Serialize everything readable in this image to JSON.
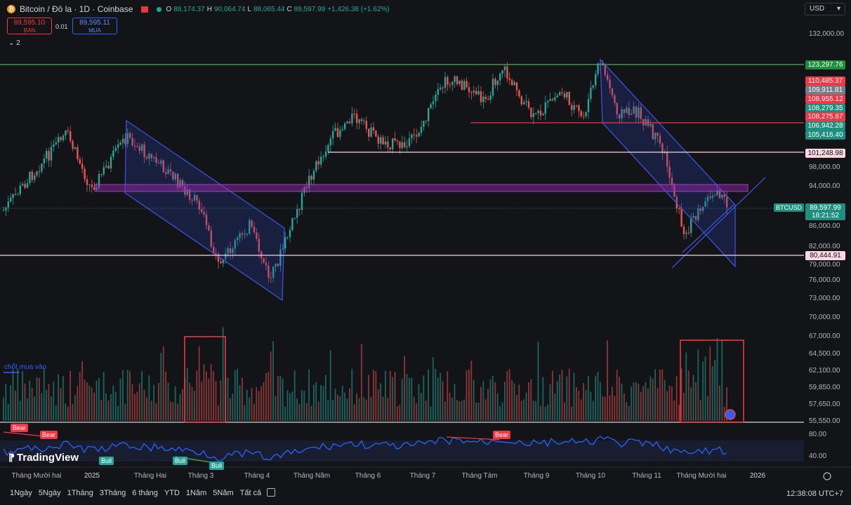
{
  "header": {
    "title": "Bitcoin / Đô la · 1D · Coinbase",
    "ohlc": {
      "o_label": "O",
      "o": "88,174.37",
      "h_label": "H",
      "h": "90,064.74",
      "l_label": "L",
      "l": "88,065.44",
      "c_label": "C",
      "c": "89,597.99",
      "change": "+1,426.38 (+1.62%)"
    },
    "sell_price": "89,595.10",
    "sell_label": "BÁN",
    "spread": "0.01",
    "buy_price": "89,595.11",
    "buy_label": "MUA",
    "indicator_count": "2",
    "currency": "USD"
  },
  "y_axis_labels": [
    "132,000.00",
    "98,000.00",
    "94,000.00",
    "86,000.00",
    "82,000.00",
    "79,000.00",
    "76,000.00",
    "73,000.00",
    "70,000.00",
    "67,000.00",
    "64,500.00",
    "62,100.00",
    "59,850.00",
    "57,650.00",
    "55,550.00"
  ],
  "rsi_axis_labels": [
    "80.00",
    "40.00"
  ],
  "price_tags": [
    {
      "text": "123,297.76",
      "bg": "#1b8f3a",
      "fg": "#ffffff"
    },
    {
      "text": "110,485.37",
      "bg": "#f23645",
      "fg": "#ffffff"
    },
    {
      "text": "109,911.81",
      "bg": "#787b86",
      "fg": "#ffffff"
    },
    {
      "text": "108,955.12",
      "bg": "#f23645",
      "fg": "#ffffff"
    },
    {
      "text": "108,279.35",
      "bg": "#1e8f7e",
      "fg": "#ffffff"
    },
    {
      "text": "108,275.67",
      "bg": "#f23645",
      "fg": "#ffffff"
    },
    {
      "text": "106,942.28",
      "bg": "#1e8f7e",
      "fg": "#ffffff"
    },
    {
      "text": "105,416.40",
      "bg": "#1e8f7e",
      "fg": "#ffffff"
    },
    {
      "text": "101,248.98",
      "bg": "#f8d7e0",
      "fg": "#131418"
    },
    {
      "text": "89,597.99",
      "bg": "#1e8f7e",
      "fg": "#ffffff"
    },
    {
      "text": "18:21:52",
      "bg": "#1e8f7e",
      "fg": "#ffffff"
    },
    {
      "text": "80,444.91",
      "bg": "#f8d7e0",
      "fg": "#131418"
    }
  ],
  "symbol_label": "BTCUSD",
  "volume_note": "chốt mua vào",
  "time_axis": [
    "Tháng Mười hai",
    "2025",
    "Tháng Hai",
    "Tháng 3",
    "Tháng 4",
    "Tháng Năm",
    "Tháng 6",
    "Tháng 7",
    "Tháng Tám",
    "Tháng 9",
    "Tháng 10",
    "Tháng 11",
    "Tháng Mười hai",
    "2026"
  ],
  "rsi_badges": {
    "bear": "Bear",
    "bull": "Bull"
  },
  "logo_text": "TradingView",
  "timeframes": [
    "1Ngày",
    "5Ngày",
    "1Tháng",
    "3Tháng",
    "6 tháng",
    "YTD",
    "1Năm",
    "5Năm",
    "Tất cả"
  ],
  "clock": "12:38:08 UTC+7",
  "colors": {
    "up": "#26a69a",
    "down": "#ef5350",
    "channel": "#2a3fb5",
    "rsi": "#2962ff"
  }
}
